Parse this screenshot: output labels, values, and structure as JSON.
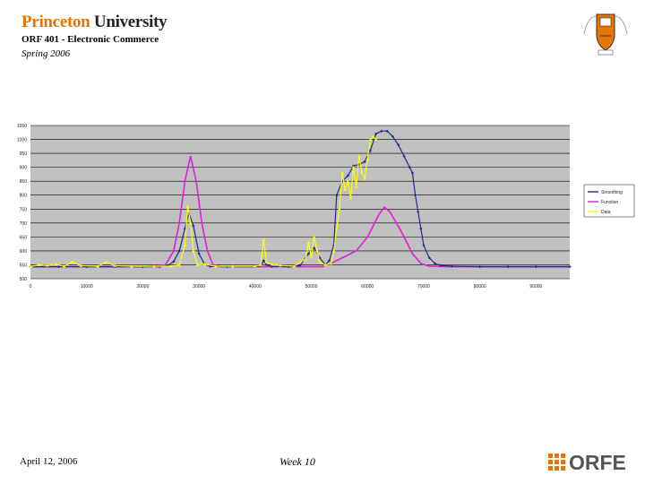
{
  "header": {
    "university_word1": "Princeton",
    "university_word2": "University",
    "course": "ORF 401 - Electronic Commerce",
    "term": "Spring 2006"
  },
  "footer": {
    "date": "April 12, 2006",
    "week": "Week 10",
    "logo_text": "ORFE"
  },
  "colors": {
    "plot_background": "#c0c0c0",
    "grid": "#000000",
    "smoothing": "#1f2b8c",
    "function": "#e020d8",
    "data": "#ffff00",
    "accent_orange": "#e77500",
    "logo_grey": "#555555"
  },
  "chart_data": {
    "type": "line",
    "title": "",
    "xlabel": "",
    "ylabel": "",
    "xlim": [
      0,
      96000
    ],
    "ylim": [
      500,
      1050
    ],
    "x_ticks": [
      0,
      10000,
      20000,
      30000,
      40000,
      50000,
      60000,
      70000,
      80000,
      90000
    ],
    "y_ticks": [
      500,
      550,
      600,
      650,
      700,
      750,
      800,
      850,
      900,
      950,
      1000,
      1050
    ],
    "grid": true,
    "legend_position": "right",
    "series": [
      {
        "name": "Smoothing",
        "color": "#1f2b8c",
        "marker": "diamond",
        "points": [
          [
            0,
            543
          ],
          [
            5000,
            543
          ],
          [
            10000,
            543
          ],
          [
            15000,
            543
          ],
          [
            20000,
            543
          ],
          [
            23000,
            543
          ],
          [
            24500,
            548
          ],
          [
            25500,
            562
          ],
          [
            26500,
            600
          ],
          [
            27500,
            680
          ],
          [
            28200,
            735
          ],
          [
            29000,
            690
          ],
          [
            30000,
            590
          ],
          [
            31000,
            552
          ],
          [
            32000,
            544
          ],
          [
            35000,
            543
          ],
          [
            40000,
            543
          ],
          [
            41000,
            547
          ],
          [
            41500,
            565
          ],
          [
            42000,
            550
          ],
          [
            43000,
            544
          ],
          [
            46000,
            543
          ],
          [
            48000,
            548
          ],
          [
            49500,
            590
          ],
          [
            50500,
            610
          ],
          [
            51500,
            575
          ],
          [
            52500,
            550
          ],
          [
            53200,
            565
          ],
          [
            54000,
            620
          ],
          [
            54500,
            800
          ],
          [
            55500,
            850
          ],
          [
            56500,
            870
          ],
          [
            57500,
            905
          ],
          [
            58500,
            910
          ],
          [
            59500,
            920
          ],
          [
            60500,
            960
          ],
          [
            61500,
            1020
          ],
          [
            62500,
            1030
          ],
          [
            63500,
            1030
          ],
          [
            64500,
            1010
          ],
          [
            65500,
            980
          ],
          [
            66500,
            940
          ],
          [
            67500,
            900
          ],
          [
            68000,
            880
          ],
          [
            68500,
            800
          ],
          [
            69000,
            740
          ],
          [
            69500,
            680
          ],
          [
            70000,
            620
          ],
          [
            71000,
            575
          ],
          [
            72000,
            555
          ],
          [
            73000,
            548
          ],
          [
            75000,
            545
          ],
          [
            80000,
            543
          ],
          [
            85000,
            543
          ],
          [
            90000,
            543
          ],
          [
            96000,
            543
          ]
        ]
      },
      {
        "name": "Function",
        "color": "#e020d8",
        "marker": "none",
        "points": [
          [
            0,
            543
          ],
          [
            20000,
            543
          ],
          [
            24000,
            550
          ],
          [
            25500,
            600
          ],
          [
            26500,
            700
          ],
          [
            27500,
            850
          ],
          [
            28500,
            940
          ],
          [
            29500,
            850
          ],
          [
            30500,
            700
          ],
          [
            31500,
            600
          ],
          [
            32500,
            550
          ],
          [
            34000,
            543
          ],
          [
            52000,
            543
          ],
          [
            54000,
            560
          ],
          [
            56000,
            580
          ],
          [
            58000,
            600
          ],
          [
            60000,
            650
          ],
          [
            62000,
            730
          ],
          [
            63000,
            757
          ],
          [
            64000,
            740
          ],
          [
            66000,
            670
          ],
          [
            68000,
            590
          ],
          [
            69500,
            555
          ],
          [
            71000,
            545
          ],
          [
            74000,
            543
          ],
          [
            96000,
            543
          ]
        ]
      },
      {
        "name": "Data",
        "color": "#ffff00",
        "marker": "triangle",
        "points": [
          [
            0,
            543
          ],
          [
            1500,
            550
          ],
          [
            3000,
            548
          ],
          [
            4500,
            552
          ],
          [
            6000,
            545
          ],
          [
            7500,
            560
          ],
          [
            9000,
            547
          ],
          [
            12000,
            545
          ],
          [
            13500,
            560
          ],
          [
            15000,
            547
          ],
          [
            18000,
            545
          ],
          [
            22000,
            545
          ],
          [
            25000,
            545
          ],
          [
            26500,
            550
          ],
          [
            27500,
            620
          ],
          [
            28000,
            760
          ],
          [
            28500,
            700
          ],
          [
            29000,
            600
          ],
          [
            29700,
            550
          ],
          [
            31000,
            552
          ],
          [
            33000,
            545
          ],
          [
            36000,
            545
          ],
          [
            40000,
            545
          ],
          [
            41000,
            550
          ],
          [
            41500,
            640
          ],
          [
            42000,
            560
          ],
          [
            43000,
            552
          ],
          [
            44500,
            548
          ],
          [
            47000,
            545
          ],
          [
            48000,
            560
          ],
          [
            49000,
            570
          ],
          [
            49500,
            630
          ],
          [
            50000,
            580
          ],
          [
            50500,
            650
          ],
          [
            51000,
            600
          ],
          [
            51500,
            560
          ],
          [
            52500,
            550
          ],
          [
            53500,
            555
          ],
          [
            54000,
            600
          ],
          [
            54500,
            680
          ],
          [
            55000,
            750
          ],
          [
            55500,
            880
          ],
          [
            56000,
            820
          ],
          [
            56500,
            850
          ],
          [
            57000,
            790
          ],
          [
            57500,
            900
          ],
          [
            58000,
            830
          ],
          [
            58500,
            940
          ],
          [
            59000,
            880
          ],
          [
            59500,
            860
          ],
          [
            60000,
            930
          ],
          [
            60500,
            1000
          ],
          [
            61000,
            1010
          ],
          [
            61500,
            1000
          ]
        ]
      }
    ]
  }
}
